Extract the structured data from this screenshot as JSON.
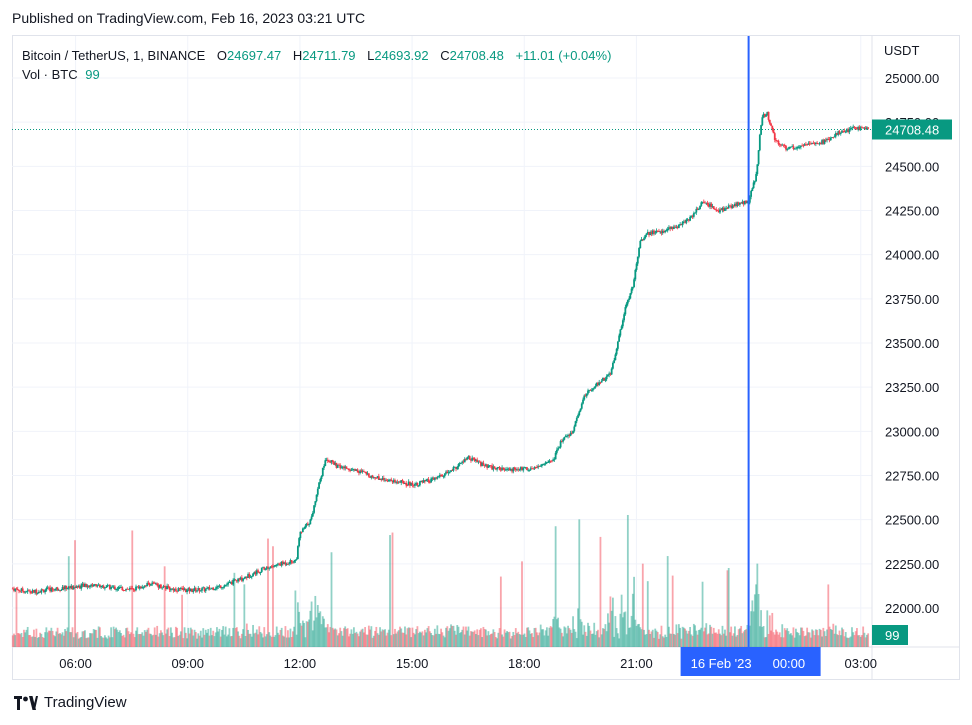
{
  "header": {
    "published": "Published on TradingView.com, Feb 16, 2023 03:21 UTC"
  },
  "legend": {
    "symbol": "Bitcoin / TetherUS, 1, BINANCE",
    "o_label": "O",
    "o": "24697.47",
    "h_label": "H",
    "h": "24711.79",
    "l_label": "L",
    "l": "24693.92",
    "c_label": "C",
    "c": "24708.48",
    "change": "+11.01 (+0.04%)",
    "vol_label": "Vol · BTC",
    "vol": "99"
  },
  "footer": {
    "brand": "TradingView"
  },
  "colors": {
    "up": "#089981",
    "down": "#f23645",
    "crosshair": "#2962ff",
    "grid": "#f0f3fa",
    "text": "#131722"
  },
  "chart_data": {
    "type": "candlestick",
    "y_axis_unit": "USDT",
    "ylim": [
      21850,
      25150
    ],
    "y_ticks": [
      22000,
      22250,
      22500,
      22750,
      23000,
      23250,
      23500,
      23750,
      24000,
      24250,
      24500,
      24750,
      25000
    ],
    "y_tick_labels": [
      "22000.00",
      "22250.00",
      "22500.00",
      "22750.00",
      "23000.00",
      "23250.00",
      "23500.00",
      "23750.00",
      "24000.00",
      "24250.00",
      "24500.00",
      "24750.00",
      "25000.00"
    ],
    "x_range_hours": [
      4.3,
      27.3
    ],
    "x_ticks": [
      6,
      9,
      12,
      15,
      18,
      21,
      27
    ],
    "x_tick_labels": [
      "06:00",
      "09:00",
      "12:00",
      "15:00",
      "18:00",
      "21:00",
      "03:00"
    ],
    "crosshair_label": {
      "x": 24,
      "date": "16 Feb '23",
      "time": "00:00"
    },
    "last_price": 24708.48,
    "last_price_label": "24708.48",
    "last_volume_label": "99",
    "grid": true,
    "price_path": [
      [
        4.3,
        22110
      ],
      [
        4.8,
        22090
      ],
      [
        5.3,
        22105
      ],
      [
        6.0,
        22120
      ],
      [
        6.5,
        22130
      ],
      [
        7.0,
        22115
      ],
      [
        7.5,
        22105
      ],
      [
        8.0,
        22140
      ],
      [
        8.5,
        22110
      ],
      [
        9.0,
        22100
      ],
      [
        9.5,
        22105
      ],
      [
        10.0,
        22130
      ],
      [
        10.5,
        22170
      ],
      [
        11.0,
        22220
      ],
      [
        11.5,
        22250
      ],
      [
        11.9,
        22270
      ],
      [
        12.0,
        22420
      ],
      [
        12.3,
        22500
      ],
      [
        12.5,
        22700
      ],
      [
        12.7,
        22850
      ],
      [
        13.0,
        22800
      ],
      [
        13.5,
        22780
      ],
      [
        14.0,
        22740
      ],
      [
        14.5,
        22720
      ],
      [
        15.0,
        22700
      ],
      [
        15.5,
        22720
      ],
      [
        16.0,
        22770
      ],
      [
        16.5,
        22850
      ],
      [
        17.0,
        22800
      ],
      [
        17.5,
        22780
      ],
      [
        18.0,
        22790
      ],
      [
        18.4,
        22800
      ],
      [
        18.8,
        22850
      ],
      [
        19.0,
        22950
      ],
      [
        19.3,
        23000
      ],
      [
        19.6,
        23200
      ],
      [
        20.0,
        23280
      ],
      [
        20.3,
        23320
      ],
      [
        20.5,
        23500
      ],
      [
        20.7,
        23700
      ],
      [
        20.9,
        23820
      ],
      [
        21.1,
        24080
      ],
      [
        21.3,
        24120
      ],
      [
        21.6,
        24130
      ],
      [
        22.0,
        24150
      ],
      [
        22.4,
        24200
      ],
      [
        22.8,
        24300
      ],
      [
        23.2,
        24250
      ],
      [
        23.6,
        24280
      ],
      [
        24.0,
        24300
      ],
      [
        24.2,
        24450
      ],
      [
        24.35,
        24780
      ],
      [
        24.5,
        24800
      ],
      [
        24.7,
        24650
      ],
      [
        25.0,
        24600
      ],
      [
        25.5,
        24620
      ],
      [
        26.0,
        24640
      ],
      [
        26.5,
        24700
      ],
      [
        27.0,
        24720
      ],
      [
        27.2,
        24708
      ]
    ],
    "volume_ylim": [
      0,
      1200
    ]
  }
}
